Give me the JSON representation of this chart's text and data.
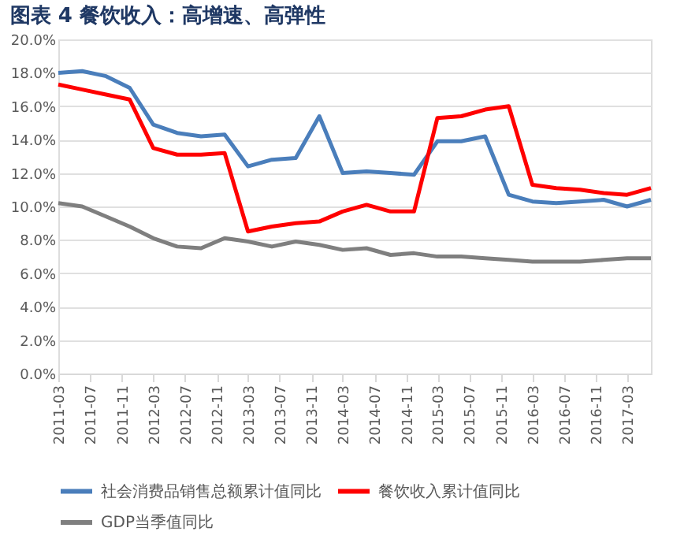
{
  "chart_data": {
    "type": "line",
    "title": "图表 4   餐饮收入：高增速、高弹性",
    "x": [
      "2011-03",
      "2011-06",
      "2011-09",
      "2011-12",
      "2012-03",
      "2012-06",
      "2012-09",
      "2012-12",
      "2013-03",
      "2013-06",
      "2013-09",
      "2013-12",
      "2014-03",
      "2014-06",
      "2014-09",
      "2014-12",
      "2015-03",
      "2015-06",
      "2015-09",
      "2015-12",
      "2016-03",
      "2016-06",
      "2016-09",
      "2016-12",
      "2017-03",
      "2017-06"
    ],
    "series": [
      {
        "name": "社会消费品销售总额累计值同比",
        "color": "#4a7ebb",
        "values": [
          18.0,
          18.1,
          17.8,
          17.1,
          14.9,
          14.4,
          14.2,
          14.3,
          12.4,
          12.8,
          12.9,
          15.4,
          12.0,
          12.1,
          12.0,
          11.9,
          13.9,
          13.9,
          14.2,
          10.7,
          10.3,
          10.2,
          10.3,
          10.4,
          10.0,
          10.4
        ]
      },
      {
        "name": "餐饮收入累计值同比",
        "color": "#ff0000",
        "values": [
          17.3,
          17.0,
          16.7,
          16.4,
          13.5,
          13.1,
          13.1,
          13.2,
          8.5,
          8.8,
          9.0,
          9.1,
          9.7,
          10.1,
          9.7,
          9.7,
          15.3,
          15.4,
          15.8,
          16.0,
          11.3,
          11.1,
          11.0,
          10.8,
          10.7,
          11.1
        ]
      },
      {
        "name": "GDP当季值同比",
        "color": "#7f7f7f",
        "values": [
          10.2,
          10.0,
          9.4,
          8.8,
          8.1,
          7.6,
          7.5,
          8.1,
          7.9,
          7.6,
          7.9,
          7.7,
          7.4,
          7.5,
          7.1,
          7.2,
          7.0,
          7.0,
          6.9,
          6.8,
          6.7,
          6.7,
          6.7,
          6.8,
          6.9,
          6.9
        ]
      }
    ],
    "xlim": [
      "2011-03",
      "2017-06"
    ],
    "xticks": [
      "2011-03",
      "2011-07",
      "2011-11",
      "2012-03",
      "2012-07",
      "2012-11",
      "2013-03",
      "2013-07",
      "2013-11",
      "2014-03",
      "2014-07",
      "2014-11",
      "2015-03",
      "2015-07",
      "2015-11",
      "2016-03",
      "2016-07",
      "2016-11",
      "2017-03"
    ],
    "ylim": [
      0,
      20
    ],
    "yticks": [
      {
        "value": 0,
        "label": "0.0%"
      },
      {
        "value": 2,
        "label": "2.0%"
      },
      {
        "value": 4,
        "label": "4.0%"
      },
      {
        "value": 6,
        "label": "6.0%"
      },
      {
        "value": 8,
        "label": "8.0%"
      },
      {
        "value": 10,
        "label": "10.0%"
      },
      {
        "value": 12,
        "label": "12.0%"
      },
      {
        "value": 14,
        "label": "14.0%"
      },
      {
        "value": 16,
        "label": "16.0%"
      },
      {
        "value": 18,
        "label": "18.0%"
      },
      {
        "value": 20,
        "label": "20.0%"
      }
    ],
    "grid": "y",
    "legend": "bottom",
    "marker": "none",
    "line_style": "solid"
  }
}
